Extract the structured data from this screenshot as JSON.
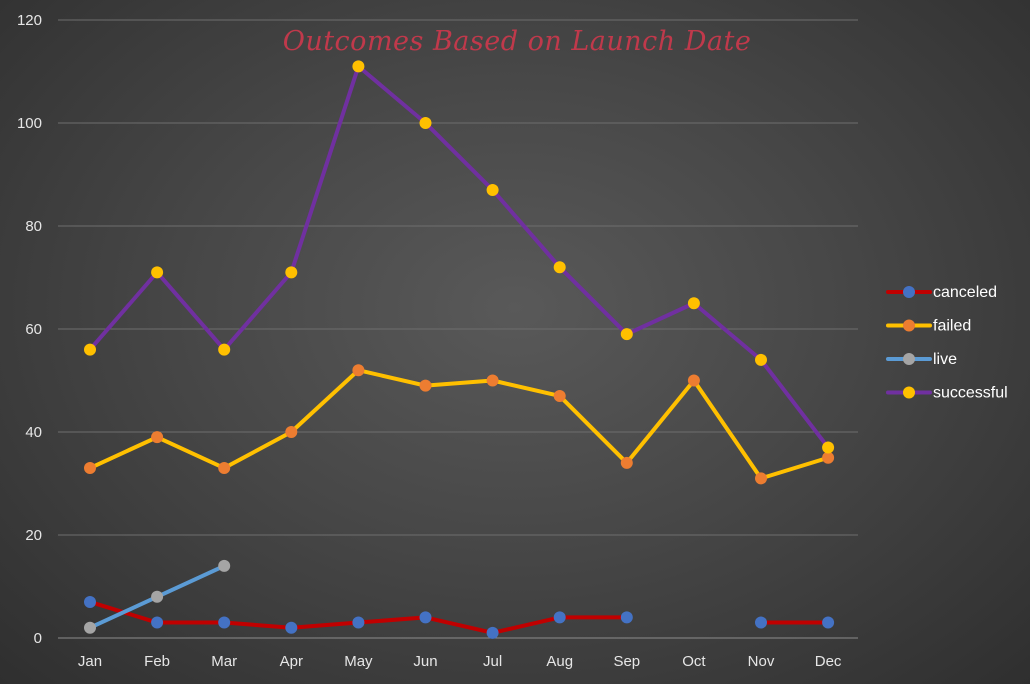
{
  "chart_data": {
    "type": "line",
    "title": "Outcomes Based on Launch Date",
    "categories": [
      "Jan",
      "Feb",
      "Mar",
      "Apr",
      "May",
      "Jun",
      "Jul",
      "Aug",
      "Sep",
      "Oct",
      "Nov",
      "Dec"
    ],
    "ylim": [
      0,
      120
    ],
    "yticks": [
      0,
      20,
      40,
      60,
      80,
      100,
      120
    ],
    "grid": true,
    "legend": "right",
    "series": [
      {
        "name": "canceled",
        "color": "#c00000",
        "marker": "#4472c4",
        "values": [
          7,
          3,
          3,
          2,
          3,
          4,
          1,
          4,
          4,
          null,
          3,
          3
        ]
      },
      {
        "name": "failed",
        "color": "#ffc000",
        "marker": "#ed7d31",
        "values": [
          33,
          39,
          33,
          40,
          52,
          49,
          50,
          47,
          34,
          50,
          31,
          35
        ]
      },
      {
        "name": "live",
        "color": "#5b9bd5",
        "marker": "#a5a5a5",
        "values": [
          2,
          8,
          14,
          null,
          null,
          null,
          null,
          null,
          null,
          null,
          null,
          null
        ]
      },
      {
        "name": "successful",
        "color": "#7030a0",
        "marker": "#ffc000",
        "values": [
          56,
          71,
          56,
          71,
          111,
          100,
          87,
          72,
          59,
          65,
          54,
          37
        ]
      }
    ]
  }
}
